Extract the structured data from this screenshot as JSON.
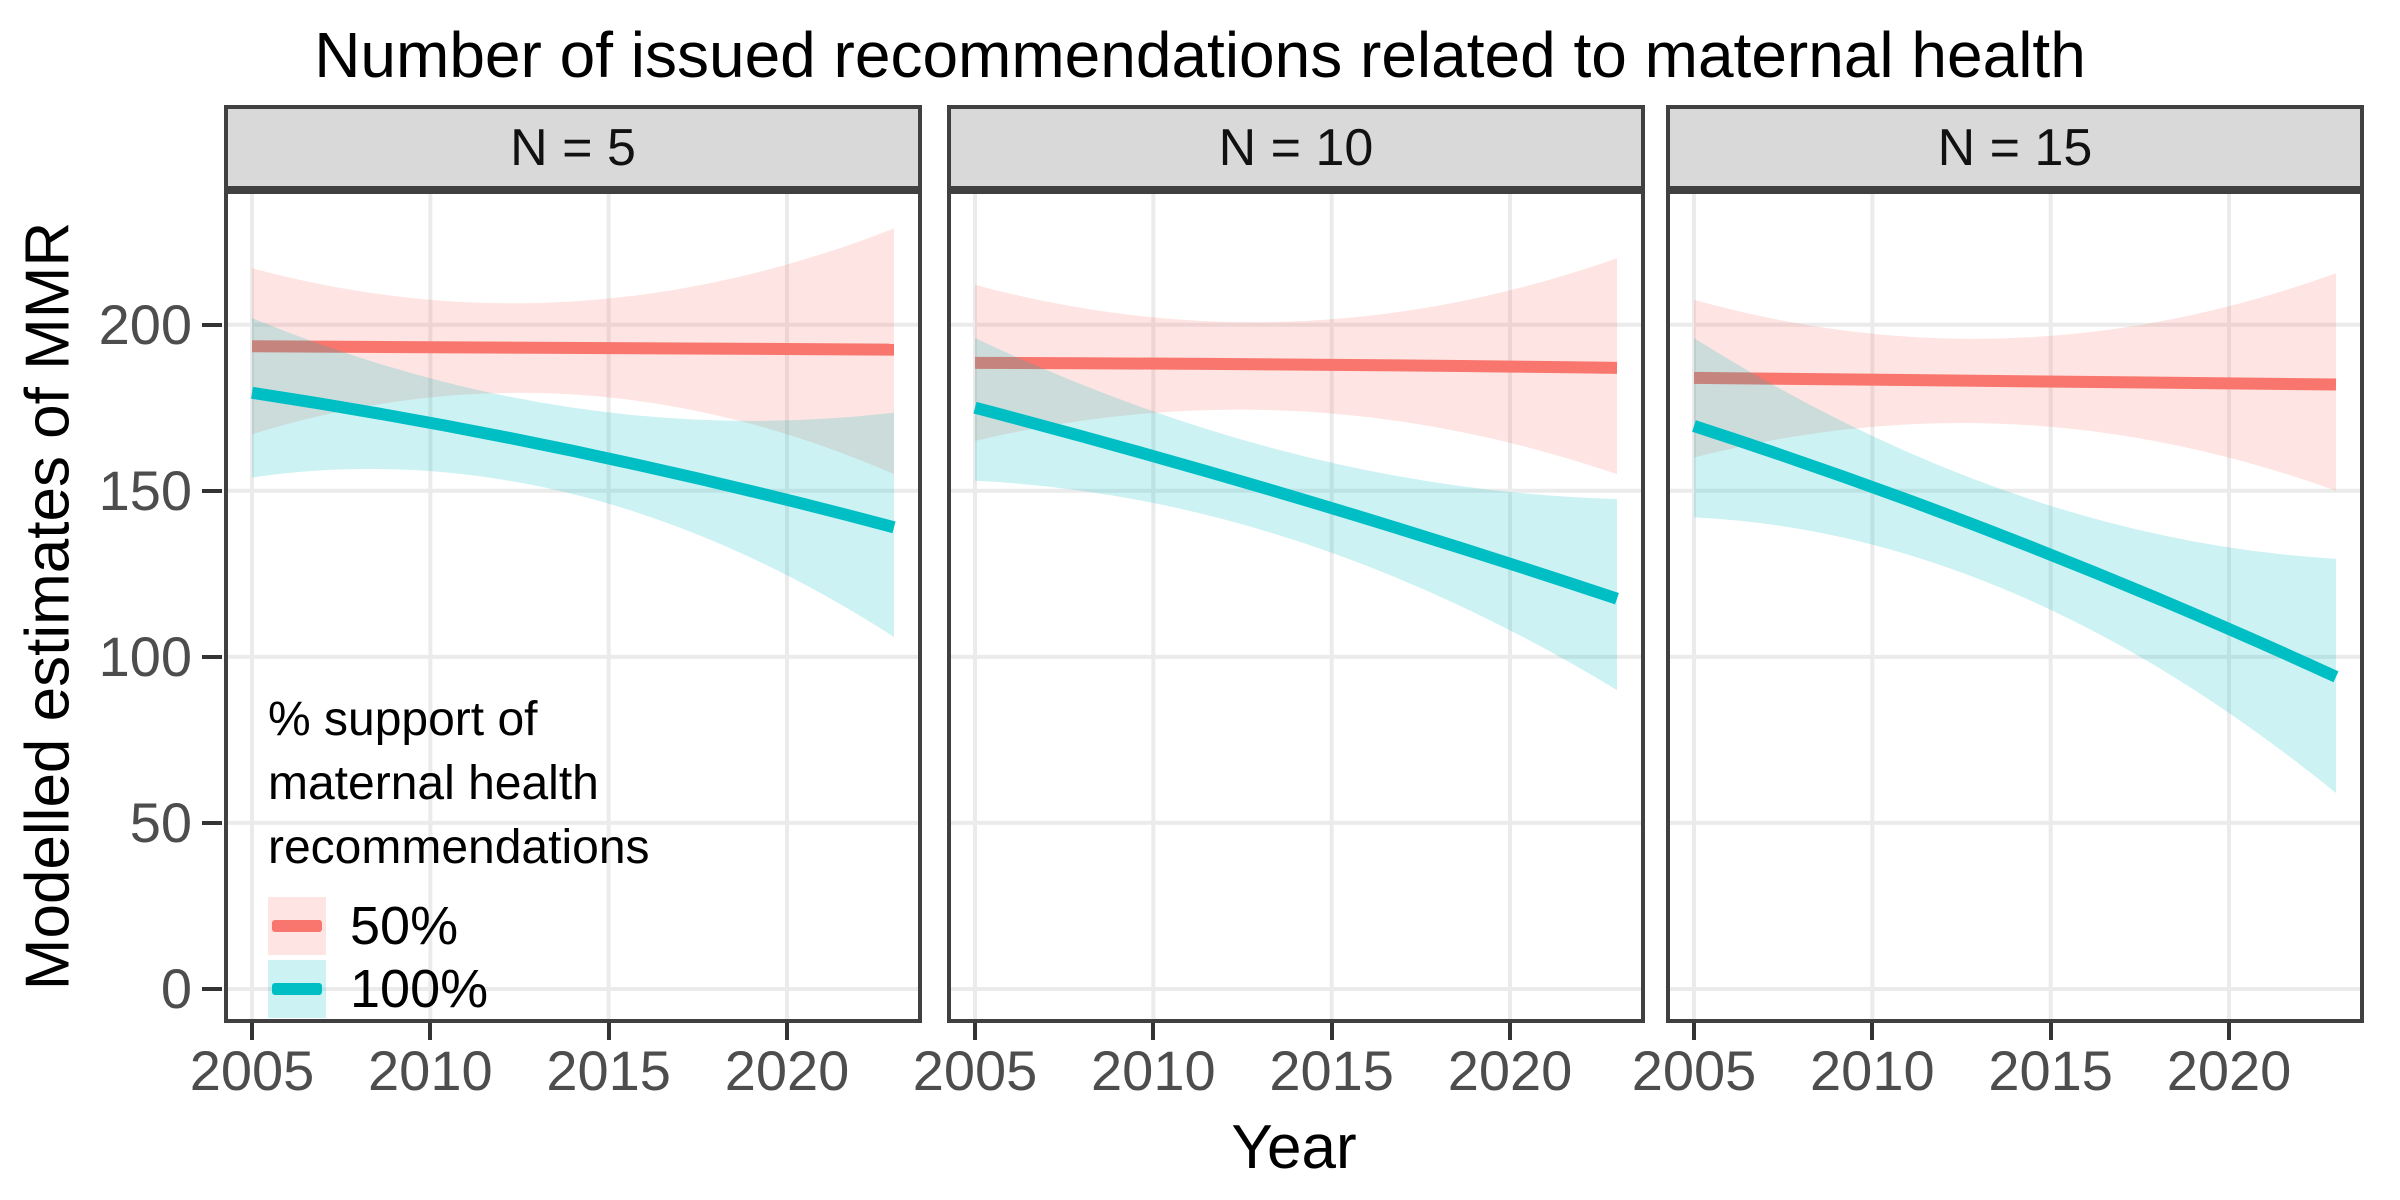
{
  "title": "Number of issued recommendations related to maternal health",
  "xlabel": "Year",
  "ylabel": "Modelled estimates of MMR",
  "colors": {
    "red_series": "#F8766D",
    "teal_series": "#00BFC4",
    "ribbon_opacity": 0.2,
    "strip_bg": "#D9D9D9",
    "grid": "#EBEBEB",
    "axis_text": "#4D4D4D",
    "panel_border": "#404040",
    "tick_mark": "#333333"
  },
  "legend": {
    "title_lines": [
      "% support of",
      "maternal health",
      "recommendations"
    ],
    "items": [
      {
        "label": "50%",
        "color": "#F8766D"
      },
      {
        "label": "100%",
        "color": "#00BFC4"
      }
    ]
  },
  "axes": {
    "y_tick_values": [
      0,
      50,
      100,
      150,
      200
    ],
    "y_tick_labels": [
      "0",
      "50",
      "100",
      "150",
      "200"
    ],
    "x_tick_values": [
      2005,
      2010,
      2015,
      2020
    ],
    "x_tick_labels": [
      "2005",
      "2010",
      "2015",
      "2020"
    ],
    "x_domain": [
      2005,
      2023
    ],
    "y_visible_range": [
      -10,
      240
    ],
    "grid": "major-only"
  },
  "chart_data": {
    "type": "line",
    "title": "Number of issued recommendations related to maternal health",
    "xlabel": "Year",
    "ylabel": "Modelled estimates of MMR",
    "facet_strip_labels": [
      "N = 5",
      "N = 10",
      "N = 15"
    ],
    "legend_title": "% support of maternal health recommendations",
    "legend_position": "inside bottom-left of first panel",
    "facets": [
      {
        "label": "N = 5",
        "series": [
          {
            "name": "50%",
            "color": "#F8766D",
            "x": [
              2005,
              2014,
              2023
            ],
            "y": [
              193.5,
              193,
              192.5
            ],
            "ci_lower": [
              167,
              179,
              155
            ],
            "ci_upper": [
              217,
              207,
              229
            ]
          },
          {
            "name": "100%",
            "color": "#00BFC4",
            "x": [
              2005,
              2014,
              2023
            ],
            "y": [
              179.5,
              162,
              139
            ],
            "ci_lower": [
              154,
              149,
              106
            ],
            "ci_upper": [
              202,
              175,
              173.5
            ]
          }
        ]
      },
      {
        "label": "N = 10",
        "series": [
          {
            "name": "50%",
            "color": "#F8766D",
            "x": [
              2005,
              2014,
              2023
            ],
            "y": [
              188.5,
              188,
              187
            ],
            "ci_lower": [
              165,
              174,
              155
            ],
            "ci_upper": [
              212,
              201,
              220
            ]
          },
          {
            "name": "100%",
            "color": "#00BFC4",
            "x": [
              2005,
              2014,
              2023
            ],
            "y": [
              175,
              148,
              117.5
            ],
            "ci_lower": [
              153,
              135,
              90
            ],
            "ci_upper": [
              196,
              161,
              147.5
            ]
          }
        ]
      },
      {
        "label": "N = 15",
        "series": [
          {
            "name": "50%",
            "color": "#F8766D",
            "x": [
              2005,
              2014,
              2023
            ],
            "y": [
              184,
              183,
              182
            ],
            "ci_lower": [
              160,
              170,
              150
            ],
            "ci_upper": [
              207.5,
              196,
              215.5
            ]
          },
          {
            "name": "100%",
            "color": "#00BFC4",
            "x": [
              2005,
              2014,
              2023
            ],
            "y": [
              169.5,
              135,
              94
            ],
            "ci_lower": [
              142,
              119,
              59
            ],
            "ci_upper": [
              196,
              149,
              129.5
            ]
          }
        ]
      }
    ]
  }
}
